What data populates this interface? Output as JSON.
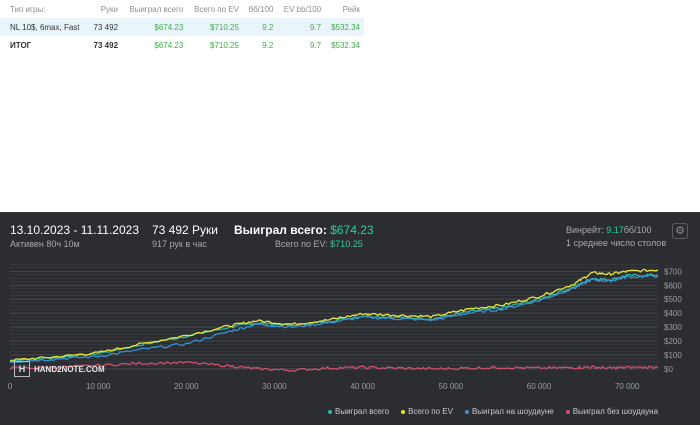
{
  "table": {
    "headers": [
      "Тип игры:",
      "Руки",
      "Выиграл всего",
      "Всего по EV",
      "бб/100",
      "EV bb/100",
      "Рейк"
    ],
    "rows": [
      [
        "NL 10$, 6max, Fast",
        "73 492",
        "$674.23",
        "$710.25",
        "9.2",
        "9.7",
        "$532.34"
      ]
    ],
    "total": [
      "ИТОГ",
      "73 492",
      "$674.23",
      "$710.25",
      "9.2",
      "9.7",
      "$532.34"
    ]
  },
  "panel": {
    "date_range": "13.10.2023 - 11.11.2023",
    "active": "Активен 80ч 10м",
    "hands": "73 492 Руки",
    "hands_per_hour": "917 рук в час",
    "won_label": "Выиграл всего:",
    "won_value": "$674.23",
    "ev_label": "Всего по EV:",
    "ev_value": "$710.25",
    "winrate_label": "Винрейт:",
    "winrate_value": "9.17",
    "winrate_suffix": "бб/100",
    "tables": "1 среднее число столов",
    "logo_text": "HAND2NOTE.COM",
    "settings_icon": "gear-icon"
  },
  "colors": {
    "won": "#2bb8a0",
    "ev": "#e8e53a",
    "showdown": "#3a8fd0",
    "nonshowdown": "#d0506e"
  },
  "chart_data": {
    "type": "line",
    "x_ticks": [
      0,
      10000,
      20000,
      30000,
      40000,
      50000,
      60000,
      70000
    ],
    "x_tick_labels": [
      "0",
      "10 000",
      "20 000",
      "30 000",
      "40 000",
      "50 000",
      "60 000",
      "70 000"
    ],
    "y_ticks": [
      0,
      100,
      200,
      300,
      400,
      500,
      600,
      700
    ],
    "y_tick_labels": [
      "$0",
      "$100",
      "$200",
      "$300",
      "$400",
      "$500",
      "$600",
      "$700"
    ],
    "xlim": [
      0,
      73492
    ],
    "ylim": [
      -30,
      760
    ],
    "series": [
      {
        "name": "Выиграл всего",
        "color": "#2bb8a0",
        "x": [
          0,
          5000,
          10000,
          15000,
          20000,
          25000,
          28000,
          32000,
          36000,
          40000,
          44000,
          48000,
          52000,
          56000,
          60000,
          64000,
          66000,
          68000,
          70000,
          73492
        ],
        "y": [
          60,
          80,
          110,
          175,
          235,
          300,
          330,
          310,
          340,
          380,
          370,
          360,
          410,
          440,
          500,
          590,
          650,
          640,
          670,
          674
        ]
      },
      {
        "name": "Всего по EV",
        "color": "#e8e53a",
        "x": [
          0,
          5000,
          10000,
          15000,
          20000,
          25000,
          28000,
          32000,
          36000,
          40000,
          44000,
          48000,
          52000,
          56000,
          60000,
          64000,
          66000,
          68000,
          70000,
          73492
        ],
        "y": [
          60,
          85,
          115,
          180,
          240,
          310,
          345,
          320,
          350,
          395,
          385,
          375,
          430,
          460,
          520,
          610,
          690,
          680,
          700,
          710
        ]
      },
      {
        "name": "Выиграл на шоудауне",
        "color": "#3a8fd0",
        "x": [
          0,
          5000,
          10000,
          15000,
          20000,
          25000,
          28000,
          32000,
          36000,
          40000,
          44000,
          48000,
          52000,
          56000,
          60000,
          64000,
          66000,
          68000,
          70000,
          73492
        ],
        "y": [
          50,
          70,
          90,
          140,
          180,
          270,
          320,
          300,
          330,
          370,
          360,
          350,
          400,
          430,
          490,
          580,
          640,
          630,
          660,
          665
        ]
      },
      {
        "name": "Выиграл без шоудауна",
        "color": "#d0506e",
        "x": [
          0,
          5000,
          10000,
          15000,
          20000,
          25000,
          28000,
          32000,
          36000,
          40000,
          44000,
          48000,
          52000,
          56000,
          60000,
          64000,
          66000,
          68000,
          70000,
          73492
        ],
        "y": [
          5,
          10,
          25,
          40,
          45,
          20,
          0,
          -10,
          5,
          10,
          5,
          0,
          5,
          10,
          5,
          8,
          12,
          5,
          10,
          12
        ]
      }
    ],
    "grid": true,
    "legend": "bottom-right"
  }
}
